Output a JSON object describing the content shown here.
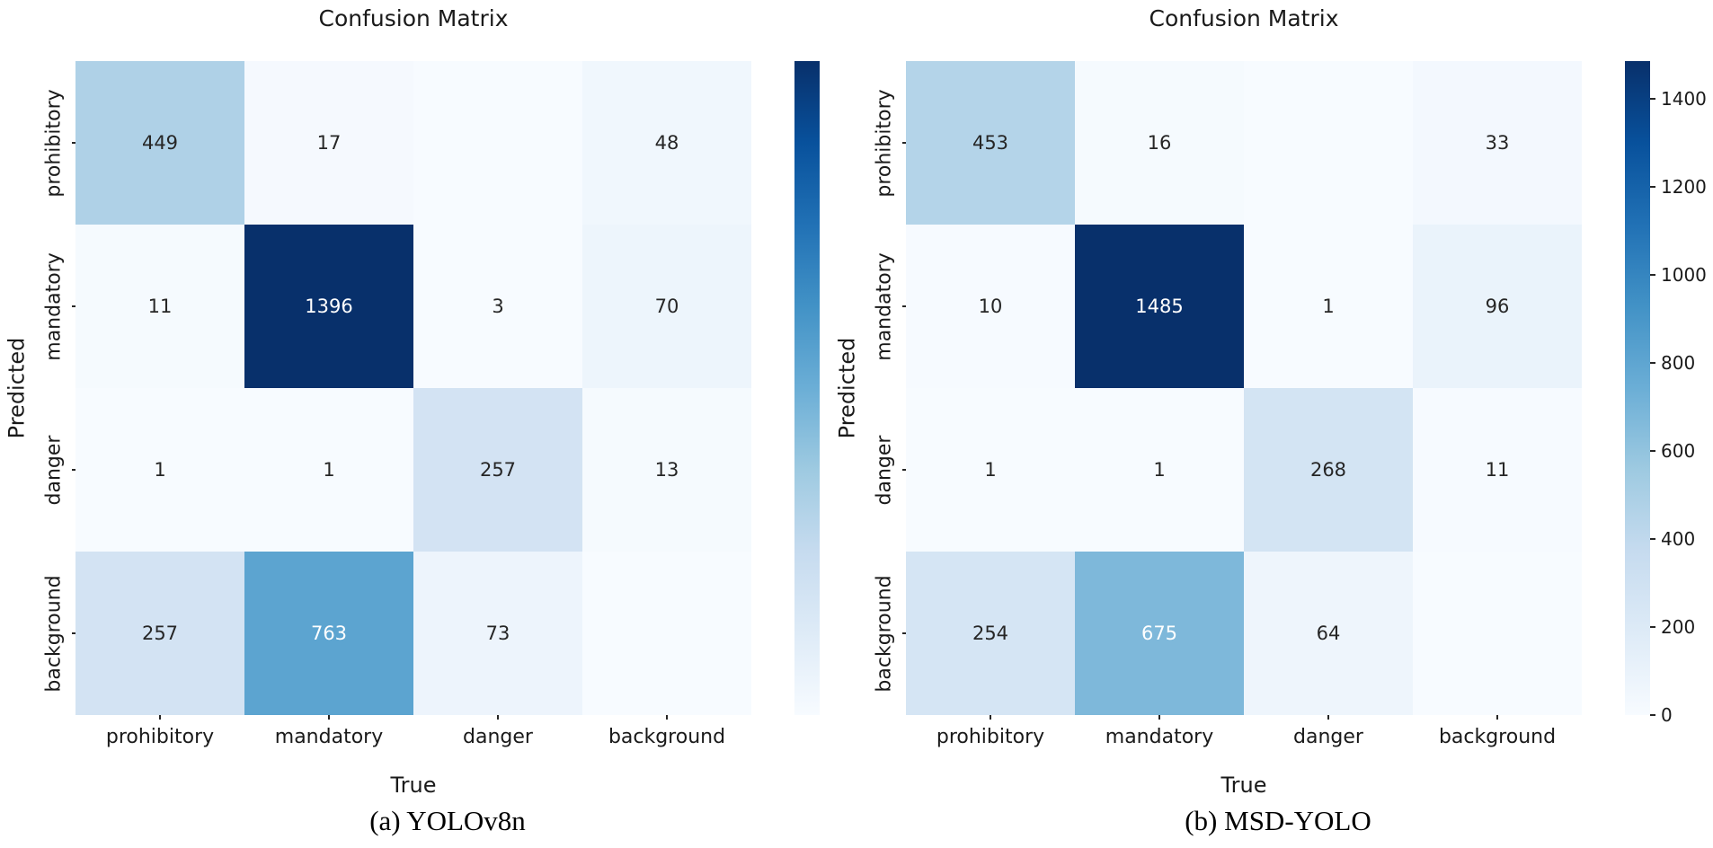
{
  "figure": {
    "background": "#ffffff",
    "text_color": "#1a1a1a",
    "annotation_dark": "#262626",
    "annotation_light": "#ffffff"
  },
  "chart_data": [
    {
      "type": "heatmap",
      "title": "Confusion Matrix",
      "caption": "(a) YOLOv8n",
      "xlabel": "True",
      "ylabel": "Predicted",
      "x_categories": [
        "prohibitory",
        "mandatory",
        "danger",
        "background"
      ],
      "y_categories": [
        "prohibitory",
        "mandatory",
        "danger",
        "background"
      ],
      "matrix": [
        [
          449,
          17,
          null,
          48
        ],
        [
          11,
          1396,
          3,
          70
        ],
        [
          1,
          1,
          257,
          13
        ],
        [
          257,
          763,
          73,
          null
        ]
      ],
      "vmin": 0,
      "vmax": 1396,
      "colormap": "Blues",
      "colormap_low": "#f7fbff",
      "colormap_high": "#08306b",
      "colorbar_position": "right",
      "colorbar_ticks": [],
      "grid": false
    },
    {
      "type": "heatmap",
      "title": "Confusion Matrix",
      "caption": "(b) MSD-YOLO",
      "xlabel": "True",
      "ylabel": "Predicted",
      "x_categories": [
        "prohibitory",
        "mandatory",
        "danger",
        "background"
      ],
      "y_categories": [
        "prohibitory",
        "mandatory",
        "danger",
        "background"
      ],
      "matrix": [
        [
          453,
          16,
          null,
          33
        ],
        [
          10,
          1485,
          1,
          96
        ],
        [
          1,
          1,
          268,
          11
        ],
        [
          254,
          675,
          64,
          null
        ]
      ],
      "vmin": 0,
      "vmax": 1485,
      "colormap": "Blues",
      "colormap_low": "#f7fbff",
      "colormap_high": "#08306b",
      "colorbar_position": "right",
      "colorbar_ticks": [
        0,
        200,
        400,
        600,
        800,
        1000,
        1200,
        1400
      ],
      "grid": false
    }
  ]
}
